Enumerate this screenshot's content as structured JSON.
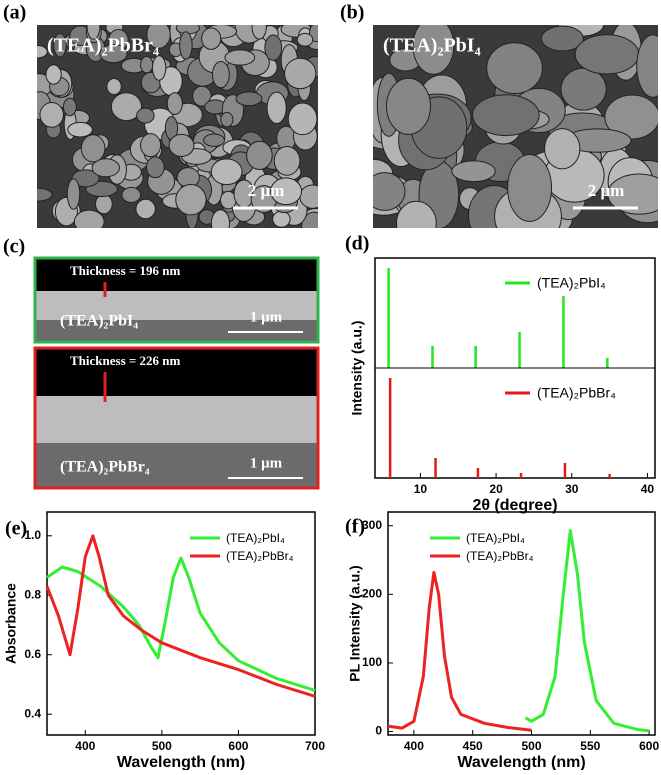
{
  "panels": [
    {
      "label": "(a)",
      "title": "(TEA)₂PbBr₄",
      "scale_bar": "2 μm"
    },
    {
      "label": "(b)",
      "title": "(TEA)₂PbI₄",
      "scale_bar": "2 μm"
    },
    {
      "label": "(c)",
      "images": [
        {
          "thickness": "Thickness = 196 nm",
          "title": "(TEA)₂PbI₄",
          "scale_bar": "1 μm"
        },
        {
          "thickness": "Thickness = 226 nm",
          "title": "(TEA)₂PbBr₄",
          "scale_bar": "1 μm"
        }
      ]
    }
  ],
  "chart_data": [
    {
      "label": "(d)",
      "type": "stem",
      "x_label": "2θ (degree)",
      "y_label": "Intensity (a.u.)",
      "xlim": [
        4,
        41
      ],
      "xticks": [
        10,
        20,
        30,
        40
      ],
      "ylim": [
        0,
        1.1
      ],
      "legend": "upper right",
      "series": [
        {
          "name": "(TEA)₂PbI₄",
          "color": "#22e622",
          "x": [
            5.8,
            11.6,
            17.3,
            23.1,
            28.9,
            34.7
          ],
          "values": [
            1.0,
            0.22,
            0.22,
            0.36,
            0.72,
            0.1
          ]
        },
        {
          "name": "(TEA)₂PbBr₄",
          "color": "#e61a1a",
          "x": [
            6.0,
            12.0,
            17.6,
            23.3,
            29.1,
            35.0
          ],
          "values": [
            1.0,
            0.2,
            0.1,
            0.05,
            0.15,
            0.04
          ]
        }
      ]
    },
    {
      "label": "(e)",
      "type": "line",
      "x_label": "Wavelength (nm)",
      "y_label": "Absorbance",
      "xlim": [
        350,
        700
      ],
      "xticks": [
        400,
        500,
        600,
        700
      ],
      "ylim": [
        0.33,
        1.08
      ],
      "yticks": [
        0.4,
        0.6,
        0.8,
        {
          "value": 1,
          "label": "1.0"
        }
      ],
      "legend": "upper right",
      "series": [
        {
          "name": "(TEA)₂PbI₄",
          "color": "#33ee33",
          "x": [
            350,
            370,
            390,
            420,
            450,
            470,
            485,
            495,
            505,
            515,
            525,
            535,
            550,
            575,
            600,
            650,
            700
          ],
          "values": [
            0.86,
            0.895,
            0.88,
            0.83,
            0.76,
            0.7,
            0.63,
            0.59,
            0.72,
            0.86,
            0.925,
            0.86,
            0.74,
            0.64,
            0.58,
            0.52,
            0.48
          ]
        },
        {
          "name": "(TEA)₂PbBr₄",
          "color": "#ee2222",
          "x": [
            350,
            365,
            380,
            390,
            400,
            410,
            418,
            430,
            450,
            475,
            500,
            550,
            600,
            650,
            700
          ],
          "values": [
            0.83,
            0.73,
            0.6,
            0.75,
            0.93,
            1.0,
            0.93,
            0.8,
            0.73,
            0.68,
            0.64,
            0.59,
            0.55,
            0.5,
            0.46
          ]
        }
      ]
    },
    {
      "label": "(f)",
      "type": "line",
      "x_label": "Wavelength (nm)",
      "y_label": "PL Intensity (a.u.)",
      "xlim": [
        378,
        605
      ],
      "xticks": [
        400,
        450,
        500,
        550,
        600
      ],
      "ylim": [
        -5,
        320
      ],
      "yticks": [
        0,
        100,
        200,
        300
      ],
      "legend": "upper left",
      "series": [
        {
          "name": "(TEA)₂PbI₄",
          "color": "#33ee33",
          "x": [
            495,
            500,
            510,
            520,
            527,
            533,
            539,
            545,
            555,
            570,
            590,
            600
          ],
          "values": [
            20,
            15,
            25,
            80,
            200,
            293,
            230,
            130,
            45,
            12,
            3,
            1
          ]
        },
        {
          "name": "(TEA)₂PbBr₄",
          "color": "#ee2222",
          "x": [
            378,
            390,
            400,
            408,
            413,
            417,
            421,
            426,
            432,
            440,
            460,
            480,
            500
          ],
          "values": [
            8,
            5,
            15,
            80,
            180,
            232,
            200,
            110,
            50,
            25,
            12,
            6,
            2
          ]
        }
      ]
    }
  ]
}
